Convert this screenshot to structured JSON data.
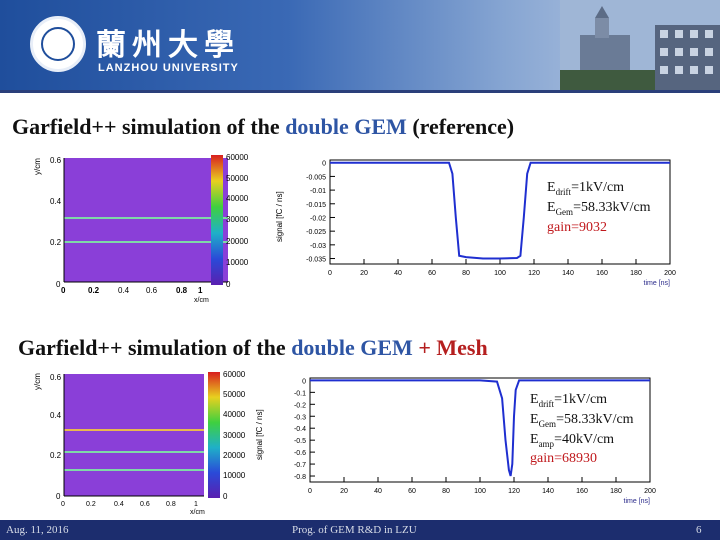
{
  "header": {
    "university_cn": "蘭州大學",
    "university_en": "LANZHOU UNIVERSITY"
  },
  "section1": {
    "title_pre": "Garfield++ simulation of the ",
    "title_hl": "double GEM",
    "title_post": "  (reference)",
    "field_plot": {
      "ylabel": "y/cm",
      "xlabel": "x/cm",
      "yticks": [
        "0.6",
        "0.4",
        "0.2",
        "0"
      ],
      "xticks": [
        "0",
        "0.2",
        "0.4",
        "0.6",
        "0.8",
        "1"
      ],
      "zticks": [
        "60000",
        "50000",
        "40000",
        "30000",
        "20000",
        "10000",
        "0"
      ]
    },
    "signal_plot": {
      "ylabel": "signal [fC / ns]",
      "xlabel": "time [ns]",
      "yticks": [
        "0",
        "-0.005",
        "-0.01",
        "-0.015",
        "-0.02",
        "-0.025",
        "-0.03",
        "-0.035"
      ],
      "xticks": [
        "0",
        "20",
        "40",
        "60",
        "80",
        "100",
        "120",
        "140",
        "160",
        "180",
        "200"
      ]
    },
    "annotations": {
      "edrift": "=1kV/cm",
      "egem": "=58.33kV/cm",
      "gain": "gain=9032"
    }
  },
  "section2": {
    "title_pre": "Garfield++ simulation of the ",
    "title_hl": "double GEM",
    "title_post": " + Mesh",
    "field_plot": {
      "ylabel": "y/cm",
      "xlabel": "x/cm",
      "yticks": [
        "0.6",
        "0.4",
        "0.2",
        "0"
      ],
      "xticks": [
        "0",
        "0.2",
        "0.4",
        "0.6",
        "0.8",
        "1"
      ],
      "zticks": [
        "60000",
        "50000",
        "40000",
        "30000",
        "20000",
        "10000",
        "0"
      ]
    },
    "signal_plot": {
      "ylabel": "signal [fC / ns]",
      "xlabel": "time [ns]",
      "yticks": [
        "0",
        "-0.1",
        "-0.2",
        "-0.3",
        "-0.4",
        "-0.5",
        "-0.6",
        "-0.7",
        "-0.8"
      ],
      "xticks": [
        "0",
        "20",
        "40",
        "60",
        "80",
        "100",
        "120",
        "140",
        "160",
        "180",
        "200"
      ]
    },
    "annotations": {
      "edrift": "=1kV/cm",
      "egem": "=58.33kV/cm",
      "eamp": "=40kV/cm",
      "gain": "gain=68930"
    }
  },
  "footer": {
    "date": "Aug. 11, 2016",
    "center": "Prog. of GEM R&D in LZU",
    "page": "6"
  },
  "chart_data": [
    {
      "type": "line",
      "xlabel": "time [ns]",
      "ylabel": "signal [fC / ns]",
      "xlim": [
        0,
        200
      ],
      "ylim": [
        -0.037,
        0.001
      ],
      "series": [
        {
          "values": [
            [
              0,
              0
            ],
            [
              20,
              0
            ],
            [
              40,
              0
            ],
            [
              60,
              0
            ],
            [
              70,
              0
            ],
            [
              72,
              -0.004
            ],
            [
              74,
              -0.02
            ],
            [
              76,
              -0.034
            ],
            [
              80,
              -0.0345
            ],
            [
              90,
              -0.035
            ],
            [
              100,
              -0.035
            ],
            [
              110,
              -0.0348
            ],
            [
              112,
              -0.034
            ],
            [
              114,
              -0.02
            ],
            [
              116,
              -0.004
            ],
            [
              118,
              0
            ],
            [
              140,
              0
            ],
            [
              160,
              0
            ],
            [
              180,
              0
            ],
            [
              200,
              0
            ]
          ]
        }
      ]
    },
    {
      "type": "line",
      "xlabel": "time [ns]",
      "ylabel": "signal [fC / ns]",
      "xlim": [
        0,
        200
      ],
      "ylim": [
        -0.85,
        0.02
      ],
      "series": [
        {
          "values": [
            [
              0,
              0
            ],
            [
              20,
              0
            ],
            [
              40,
              0
            ],
            [
              60,
              0
            ],
            [
              80,
              0
            ],
            [
              100,
              0
            ],
            [
              110,
              -0.01
            ],
            [
              113,
              -0.15
            ],
            [
              115,
              -0.5
            ],
            [
              117,
              -0.75
            ],
            [
              118,
              -0.8
            ],
            [
              119,
              -0.7
            ],
            [
              120,
              -0.3
            ],
            [
              121,
              -0.08
            ],
            [
              123,
              0
            ],
            [
              140,
              0
            ],
            [
              160,
              0
            ],
            [
              180,
              0
            ],
            [
              200,
              0
            ]
          ]
        }
      ]
    }
  ]
}
